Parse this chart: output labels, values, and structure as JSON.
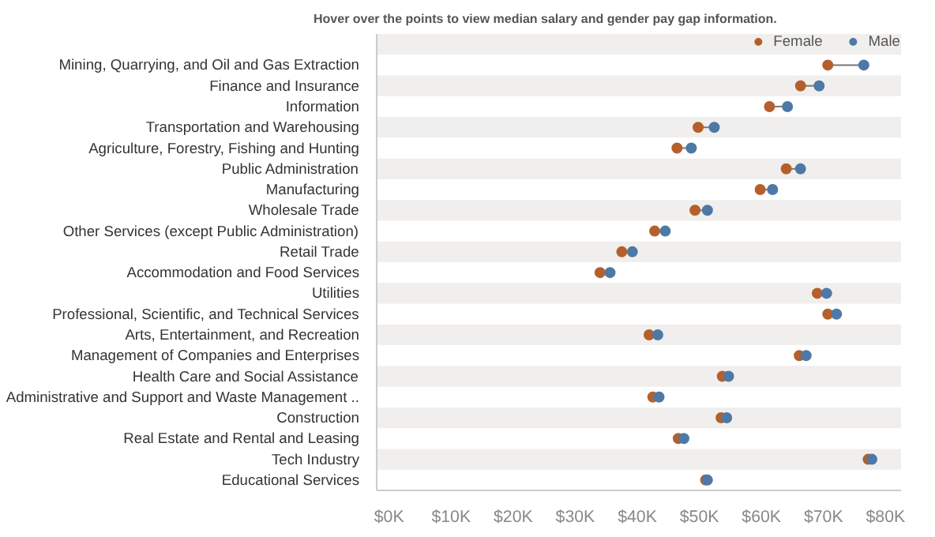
{
  "chart_data": {
    "type": "scatter",
    "orientation": "horizontal",
    "title": "Hover over the points to view median salary and gender pay gap information.",
    "categories": [
      "Mining, Quarrying, and Oil and Gas Extraction",
      "Finance and Insurance",
      "Information",
      "Transportation and Warehousing",
      "Agriculture, Forestry, Fishing and Hunting",
      "Public Administration",
      "Manufacturing",
      "Wholesale Trade",
      "Other Services (except Public Administration)",
      "Retail Trade",
      "Accommodation and Food Services",
      "Utilities",
      "Professional, Scientific, and Technical Services",
      "Arts, Entertainment, and Recreation",
      "Management of Companies and Enterprises",
      "Health Care and Social Assistance",
      "Administrative and Support and Waste Management ..",
      "Construction",
      "Real Estate and Rental and Leasing",
      "Tech Industry",
      "Educational Services"
    ],
    "series": [
      {
        "name": "Female",
        "color": "#b5602c",
        "values": [
          70.7,
          66.3,
          61.3,
          49.8,
          46.4,
          64.0,
          59.8,
          49.3,
          42.8,
          37.5,
          34.0,
          69.0,
          70.7,
          41.9,
          66.1,
          53.7,
          42.5,
          53.5,
          46.6,
          77.2,
          51.0
        ]
      },
      {
        "name": "Male",
        "color": "#4e79a7",
        "values": [
          76.5,
          69.3,
          64.2,
          52.4,
          48.7,
          66.3,
          61.8,
          51.3,
          44.5,
          39.2,
          35.6,
          70.5,
          72.1,
          43.3,
          67.2,
          54.7,
          43.5,
          54.4,
          47.5,
          77.8,
          51.3
        ]
      }
    ],
    "xlim": [
      -2,
      82.5
    ],
    "xticks": [
      {
        "value": 0,
        "label": "$0K"
      },
      {
        "value": 10,
        "label": "$10K"
      },
      {
        "value": 20,
        "label": "$20K"
      },
      {
        "value": 30,
        "label": "$30K"
      },
      {
        "value": 40,
        "label": "$40K"
      },
      {
        "value": 50,
        "label": "$50K"
      },
      {
        "value": 60,
        "label": "$60K"
      },
      {
        "value": 70,
        "label": "$70K"
      },
      {
        "value": 80,
        "label": "$80K"
      }
    ],
    "marker": "circle",
    "legend": "top right",
    "grid": false
  }
}
